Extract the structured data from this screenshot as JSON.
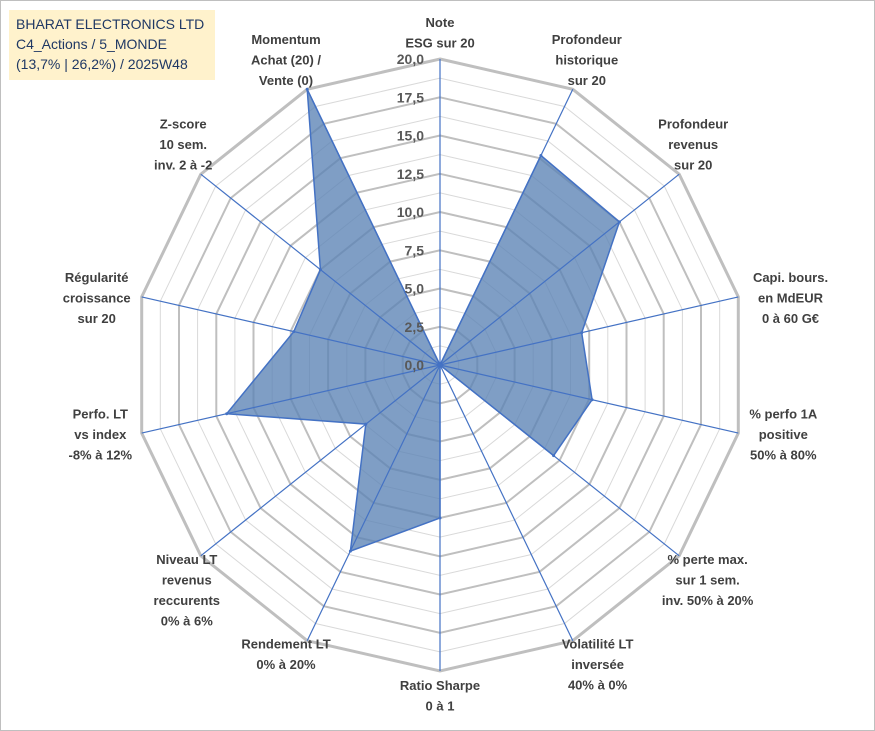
{
  "title": {
    "line1": "BHARAT ELECTRONICS LTD",
    "line2": "C4_Actions / 5_MONDE",
    "line3": "(13,7% | 26,2%) / 2025W48"
  },
  "colors": {
    "fill": "#5b83b5",
    "stroke": "#4472c4",
    "grid_major": "#bfbfbf",
    "grid_minor": "#d9d9d9",
    "spoke": "#4472c4",
    "title_bg": "#fff2cc",
    "title_text": "#1f3864"
  },
  "chart_data": {
    "type": "radar",
    "rmin": 0,
    "rmax": 20,
    "tick_labels": [
      "0,0",
      "2,5",
      "5,0",
      "7,5",
      "10,0",
      "12,5",
      "15,0",
      "17,5",
      "20,0"
    ],
    "categories": [
      [
        "Note",
        "ESG sur 20"
      ],
      [
        "Profondeur",
        "historique",
        "sur 20"
      ],
      [
        "Profondeur",
        "revenus",
        "sur 20"
      ],
      [
        "Capi. bours.",
        "en MdEUR",
        "0 à 60 G€"
      ],
      [
        "% perfo 1A",
        "positive",
        "50% à 80%"
      ],
      [
        "% perte max.",
        "sur 1 sem.",
        "inv. 50% à 20%"
      ],
      [
        "Volatilité LT",
        "inversée",
        "40% à 0%"
      ],
      [
        "Ratio Sharpe",
        "0 à 1"
      ],
      [
        "Rendement LT",
        "0% à 20%"
      ],
      [
        "Niveau LT",
        "revenus",
        "reccurents",
        "0% à 6%"
      ],
      [
        "Perfo. LT",
        "vs index",
        "-8% à 12%"
      ],
      [
        "Régularité",
        "croissance",
        "sur 20"
      ],
      [
        "Z-score",
        "10 sem.",
        "inv. 2 à -2"
      ],
      [
        "Momentum",
        "Achat (20) /",
        "Vente (0)"
      ]
    ],
    "series": [
      {
        "values": [
          0,
          15.2,
          15.0,
          9.5,
          10.2,
          9.5,
          0,
          10.0,
          13.5,
          6.2,
          14.3,
          9.8,
          10.0,
          20.0
        ]
      }
    ],
    "grid": true
  }
}
